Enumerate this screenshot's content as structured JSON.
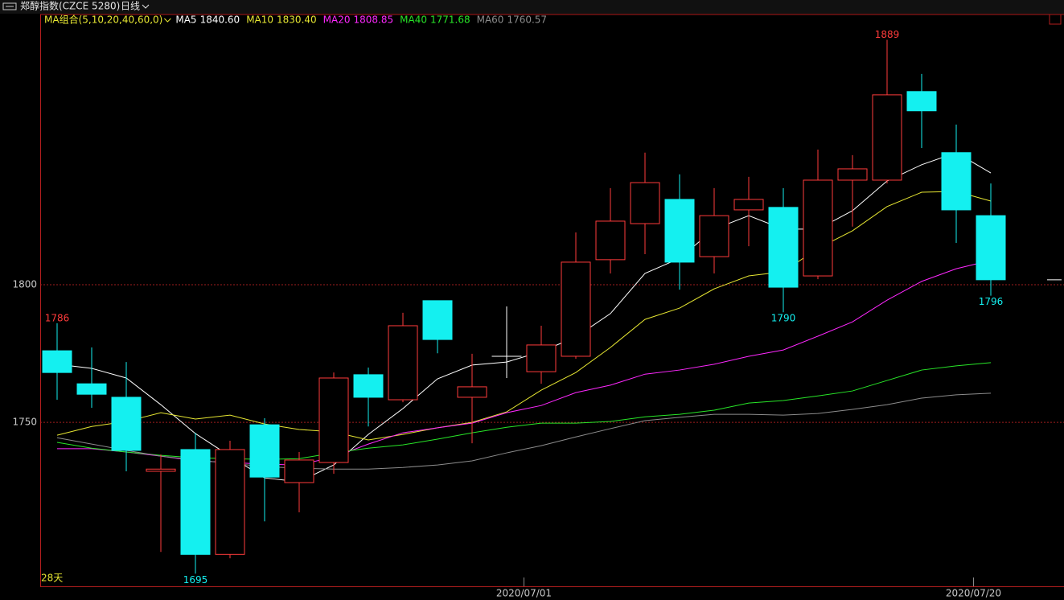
{
  "chart_data": {
    "type": "candlestick",
    "title": "郑醇指数(CZCE 5280)",
    "period": "日线",
    "ma_label": "MA组合(5,10,20,40,60,0)",
    "days_label": "28天",
    "categories": [
      null,
      null,
      null,
      null,
      null,
      null,
      null,
      null,
      null,
      null,
      null,
      null,
      null,
      null,
      "2020/07/01",
      null,
      null,
      null,
      null,
      null,
      null,
      null,
      null,
      null,
      null,
      null,
      null,
      "2020/07/20"
    ],
    "open": [
      1776.0,
      1764.0,
      1759.1,
      1732.2,
      1740.1,
      1702.0,
      1749.1,
      1728.1,
      1735.4,
      1767.3,
      1758.2,
      1794.2,
      1759.1,
      1774.0,
      1768.4,
      1774.0,
      1809.1,
      1822.2,
      1831.0,
      1810.2,
      1827.2,
      1828.1,
      1803.2,
      1838.0,
      1838.0,
      1870.2,
      1848.0,
      1825.1
    ],
    "high": [
      1786,
      1777.2,
      1771.9,
      1738.3,
      1746.2,
      1743.3,
      1751.5,
      1739.2,
      1768.1,
      1769.9,
      1789.8,
      1794.2,
      1774.9,
      1792.1,
      1785.1,
      1819.0,
      1835.1,
      1848.0,
      1840.1,
      1835.1,
      1839.2,
      1835.1,
      1849.1,
      1847.1,
      1889,
      1876.6,
      1858.2,
      1836.8
    ],
    "low": [
      1758.2,
      1755.3,
      1732.2,
      1702.9,
      1695,
      1700.6,
      1714.0,
      1717.3,
      1731.3,
      1748.5,
      1757.3,
      1775.1,
      1742.4,
      1766.1,
      1764.0,
      1773.1,
      1804.1,
      1811.1,
      1798.2,
      1804.1,
      1814.0,
      1790,
      1802.0,
      1821.1,
      1836.8,
      1849.7,
      1815.2,
      1796
    ],
    "close": [
      1768.1,
      1760.2,
      1739.8,
      1733.0,
      1702.0,
      1740.1,
      1730.1,
      1736.3,
      1766.1,
      1759.1,
      1785.1,
      1780.1,
      1762.9,
      1774.0,
      1778.1,
      1808.2,
      1823.1,
      1837.1,
      1808.2,
      1825.1,
      1831.0,
      1799.1,
      1838.0,
      1842.1,
      1869.0,
      1863.2,
      1827.2,
      1801.8
    ],
    "high_labels": [
      "1786",
      null,
      null,
      null,
      null,
      null,
      null,
      null,
      null,
      null,
      null,
      null,
      null,
      null,
      null,
      null,
      null,
      null,
      null,
      null,
      null,
      null,
      null,
      null,
      "1889",
      null,
      null,
      null
    ],
    "low_labels": [
      null,
      null,
      null,
      null,
      "1695",
      null,
      null,
      null,
      null,
      null,
      null,
      null,
      null,
      null,
      null,
      null,
      null,
      null,
      null,
      null,
      null,
      "1790",
      null,
      null,
      null,
      null,
      null,
      "1796"
    ],
    "up_color": "#ff3b3b",
    "down_color": "#14f0f0",
    "flat_color": "#ffffff",
    "series": [
      {
        "name": "MA5",
        "color": "#ffffff",
        "current": {
          "value": 1840.6,
          "label": "1840.60"
        },
        "values": [
          1771.1,
          1769.6,
          1766.1,
          1756.4,
          1745.9,
          1737.7,
          1729.8,
          1728.4,
          1734.5,
          1745.6,
          1755.0,
          1765.8,
          1770.8,
          1771.9,
          1775.7,
          1781.0,
          1789.5,
          1804.1,
          1809.6,
          1820.2,
          1825.1,
          1820.2,
          1820.2,
          1826.9,
          1837.7,
          1843.6,
          1848.0,
          1840.6
        ]
      },
      {
        "name": "MA10",
        "color": "#e6e632",
        "current": {
          "value": 1830.4,
          "label": "1830.40"
        },
        "values": [
          1745.3,
          1748.5,
          1750.3,
          1753.5,
          1751.2,
          1752.6,
          1749.4,
          1747.4,
          1746.5,
          1743.6,
          1745.6,
          1748.0,
          1750.0,
          1753.8,
          1761.7,
          1768.1,
          1777.2,
          1787.4,
          1791.5,
          1798.5,
          1803.2,
          1804.7,
          1813.2,
          1819.6,
          1828.4,
          1833.6,
          1833.9,
          1830.4
        ]
      },
      {
        "name": "MA20",
        "color": "#ff28ff",
        "current": {
          "value": 1808.85,
          "label": "1808.85"
        },
        "values": [
          1740.4,
          1740.4,
          1739.2,
          1737.7,
          1736.0,
          1735.4,
          1734.8,
          1734.5,
          1737.4,
          1742.1,
          1746.2,
          1748.0,
          1749.7,
          1753.5,
          1756.1,
          1760.8,
          1763.5,
          1767.5,
          1769.0,
          1771.1,
          1774.0,
          1776.3,
          1781.3,
          1786.5,
          1794.4,
          1801.2,
          1805.8,
          1808.85
        ]
      },
      {
        "name": "MA40",
        "color": "#28e628",
        "current": {
          "value": 1771.68,
          "label": "1771.68"
        },
        "values": [
          1742.7,
          1740.6,
          1739.2,
          1738.0,
          1737.1,
          1736.8,
          1736.5,
          1736.8,
          1738.9,
          1740.6,
          1741.8,
          1743.9,
          1746.2,
          1748.2,
          1749.7,
          1749.7,
          1750.3,
          1752.0,
          1752.9,
          1754.4,
          1757.0,
          1757.9,
          1759.6,
          1761.4,
          1765.2,
          1769.0,
          1770.5,
          1771.68
        ]
      },
      {
        "name": "MA60",
        "color": "#8c8c8c",
        "current": {
          "value": 1760.57,
          "label": "1760.57"
        },
        "values": [
          1744.4,
          1742.1,
          1739.8,
          1737.7,
          1736.3,
          1735.1,
          1733.9,
          1733.3,
          1733.0,
          1733.0,
          1733.6,
          1734.5,
          1736.0,
          1738.9,
          1741.5,
          1744.7,
          1747.7,
          1750.6,
          1751.8,
          1752.9,
          1752.9,
          1752.6,
          1753.2,
          1754.7,
          1756.4,
          1758.8,
          1760.0,
          1760.57
        ]
      }
    ],
    "ylim": [
      1690.4,
      1898.2
    ],
    "yticks": [
      1750,
      1800
    ],
    "grid": true,
    "grid_color": "#a01e1e",
    "frame_color": "#b41e1e"
  }
}
